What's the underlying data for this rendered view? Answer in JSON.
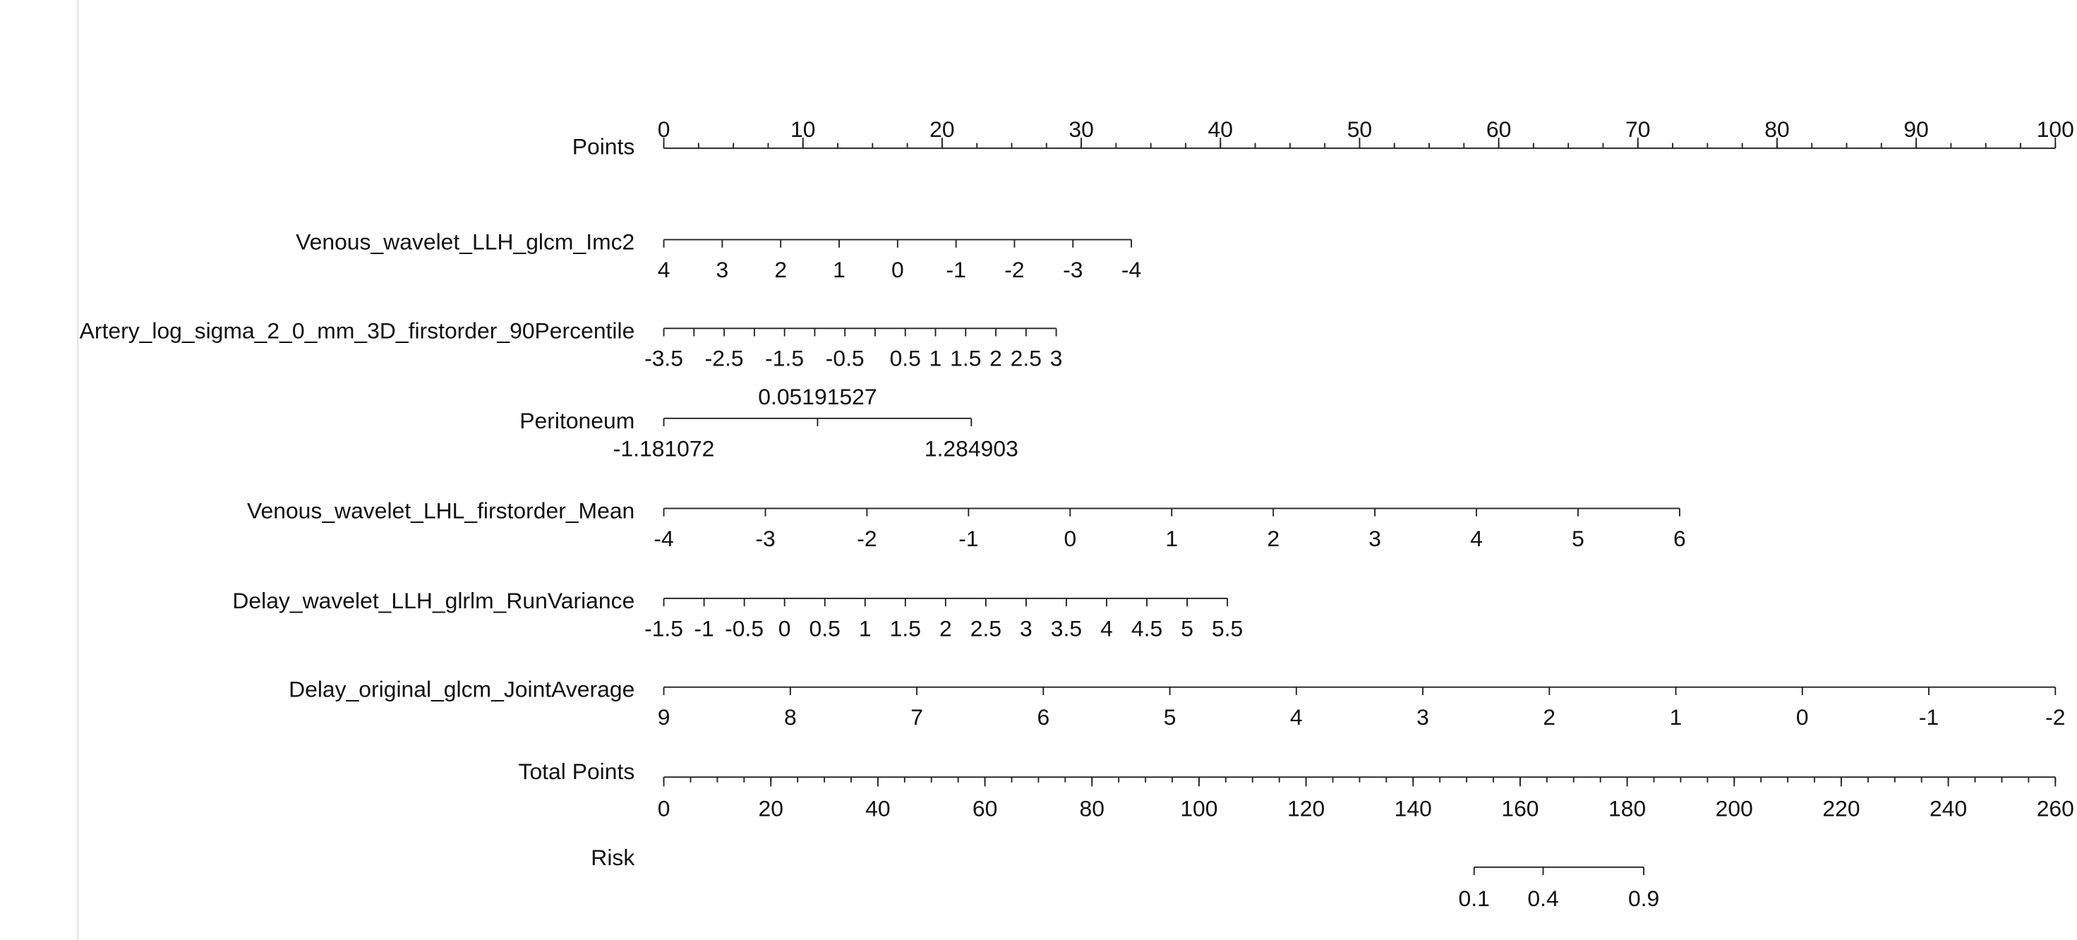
{
  "chart_data": {
    "type": "nomogram",
    "points_axis": {
      "label": "Points",
      "xlim": [
        0,
        100
      ],
      "ticks": [
        0,
        10,
        20,
        30,
        40,
        50,
        60,
        70,
        80,
        90,
        100
      ],
      "minor_step": 2.5
    },
    "variables": [
      {
        "name": "Venous_wavelet_LLH_glcm_Imc2",
        "ticks": [
          4,
          3,
          2,
          1,
          0,
          -1,
          -2,
          -3,
          -4
        ],
        "point_range": [
          0,
          33.6
        ]
      },
      {
        "name": "Artery_log_sigma_2_0_mm_3D_firstorder_90Percentile",
        "ticks": [
          -3.5,
          -2.5,
          -1.5,
          -0.5,
          0.5,
          1,
          1.5,
          2,
          2.5,
          3
        ],
        "minor_ticks": [
          -3,
          -2,
          -1,
          0
        ],
        "point_range": [
          0,
          28.2
        ]
      },
      {
        "name": "Peritoneum",
        "ticks": [
          -1.181072,
          0.05191527,
          1.284903
        ],
        "point_range": [
          0,
          22.1
        ]
      },
      {
        "name": "Venous_wavelet_LHL_firstorder_Mean",
        "ticks": [
          -4,
          -3,
          -2,
          -1,
          0,
          1,
          2,
          3,
          4,
          5,
          6
        ],
        "point_range": [
          0,
          73.0
        ]
      },
      {
        "name": "Delay_wavelet_LLH_glrlm_RunVariance",
        "ticks": [
          -1.5,
          -1,
          -0.5,
          0,
          0.5,
          1,
          1.5,
          2,
          2.5,
          3,
          3.5,
          4,
          4.5,
          5,
          5.5
        ],
        "point_range": [
          0,
          40.5
        ]
      },
      {
        "name": "Delay_original_glcm_JointAverage",
        "ticks": [
          9,
          8,
          7,
          6,
          5,
          4,
          3,
          2,
          1,
          0,
          -1,
          -2
        ],
        "point_range": [
          0,
          100
        ]
      }
    ],
    "total_points": {
      "label": "Total Points",
      "xlim": [
        0,
        260
      ],
      "ticks": [
        0,
        20,
        40,
        60,
        80,
        100,
        120,
        140,
        160,
        180,
        200,
        220,
        240,
        260
      ],
      "minor_step": 5
    },
    "risk": {
      "label": "Risk",
      "ticks": [
        0.1,
        0.4,
        0.9
      ],
      "total_points": [
        151.4,
        164.3,
        183.1
      ]
    }
  }
}
